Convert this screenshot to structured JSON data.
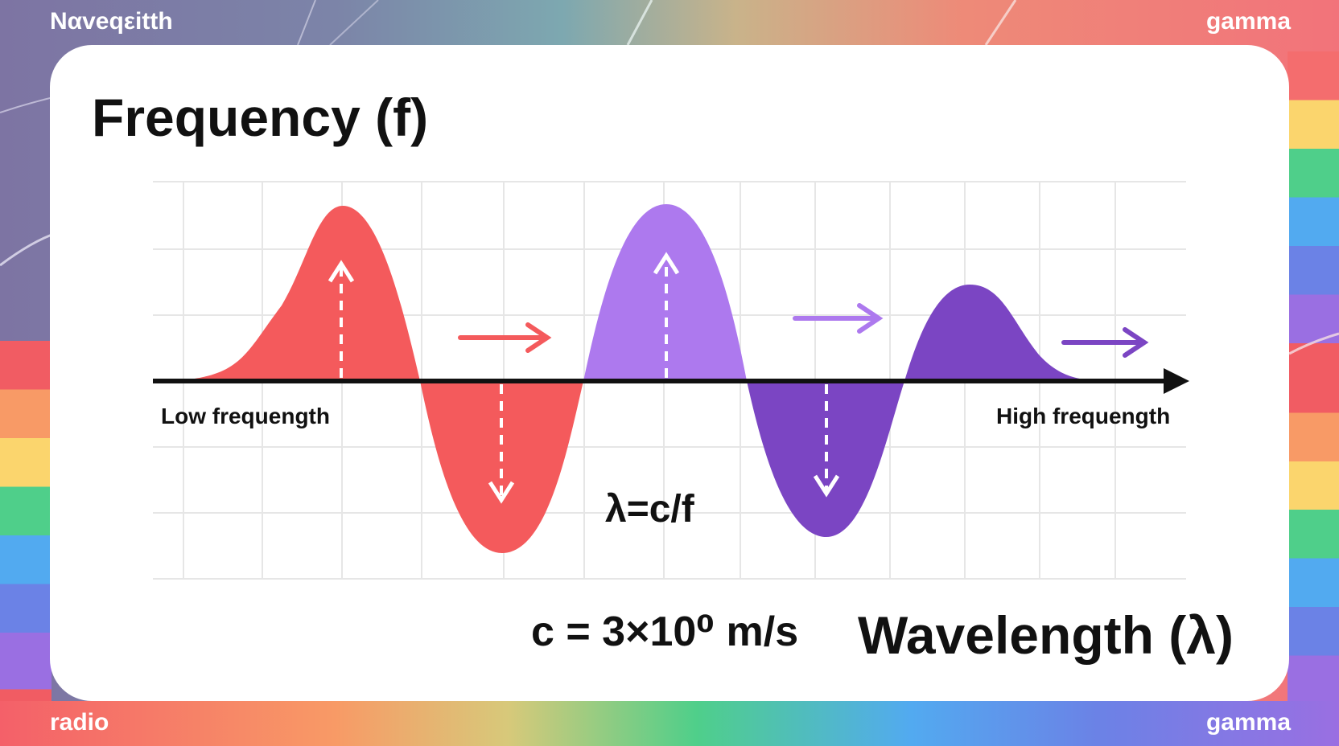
{
  "corners": {
    "top_left": "Ναveqεitth",
    "top_right": "gamma",
    "bottom_left": "radio",
    "bottom_right": "gamma"
  },
  "title": "Frequency (f)",
  "labels": {
    "low": "Low frequength",
    "high": "High frequength",
    "formula": "λ=c/f",
    "speed": "c = 3×10⁰ m/s",
    "wavelength": "Wavelength (λ)"
  },
  "colors": {
    "wave_red": "#f45a5c",
    "wave_lavender": "#ad79ee",
    "wave_purple": "#7b45c3",
    "axis": "#111111"
  }
}
